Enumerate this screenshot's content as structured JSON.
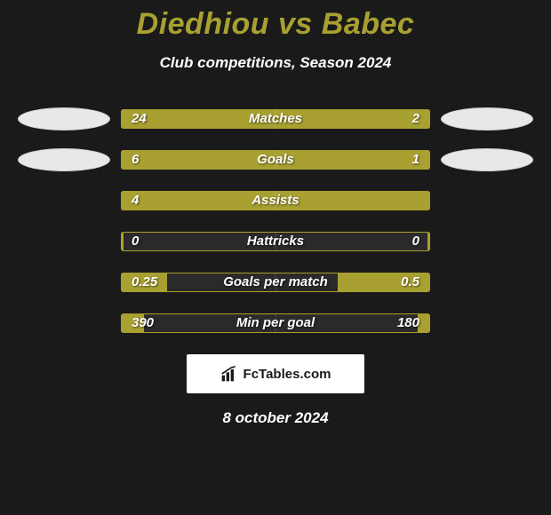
{
  "title": "Diedhiou vs Babec",
  "subtitle": "Club competitions, Season 2024",
  "date": "8 october 2024",
  "branding": "FcTables.com",
  "colors": {
    "accent": "#a8a030",
    "background": "#1a1a1a",
    "bar_empty": "#2a2a2a",
    "text_light": "#ffffff",
    "avatar_bg": "#e8e8e8"
  },
  "fonts": {
    "title_size": 34,
    "subtitle_size": 17,
    "value_size": 15,
    "label_size": 15,
    "date_size": 17
  },
  "avatars": {
    "left_rows": [
      0,
      1
    ],
    "right_rows": [
      0,
      1
    ]
  },
  "rows": [
    {
      "label": "Matches",
      "left_value": "24",
      "right_value": "2",
      "left_pct": 85,
      "right_pct": 16,
      "left_color": "#a8a030",
      "right_color": "#a8a030",
      "empty_color": "#a8a030"
    },
    {
      "label": "Goals",
      "left_value": "6",
      "right_value": "1",
      "left_pct": 17,
      "right_pct": 15,
      "left_color": "#a8a030",
      "right_color": "#a8a030",
      "empty_color": "#a8a030"
    },
    {
      "label": "Assists",
      "left_value": "4",
      "right_value": "",
      "left_pct": 100,
      "right_pct": 0,
      "left_color": "#a8a030",
      "right_color": "#a8a030",
      "empty_color": "#a8a030"
    },
    {
      "label": "Hattricks",
      "left_value": "0",
      "right_value": "0",
      "left_pct": 2,
      "right_pct": 2,
      "left_color": "#a8a030",
      "right_color": "#a8a030",
      "empty_color": "#2a2a2a"
    },
    {
      "label": "Goals per match",
      "left_value": "0.25",
      "right_value": "0.5",
      "left_pct": 30,
      "right_pct": 60,
      "left_color": "#a8a030",
      "right_color": "#a8a030",
      "empty_color": "#2a2a2a"
    },
    {
      "label": "Min per goal",
      "left_value": "390",
      "right_value": "180",
      "left_pct": 15,
      "right_pct": 8,
      "left_color": "#a8a030",
      "right_color": "#a8a030",
      "empty_color": "#2a2a2a"
    }
  ]
}
